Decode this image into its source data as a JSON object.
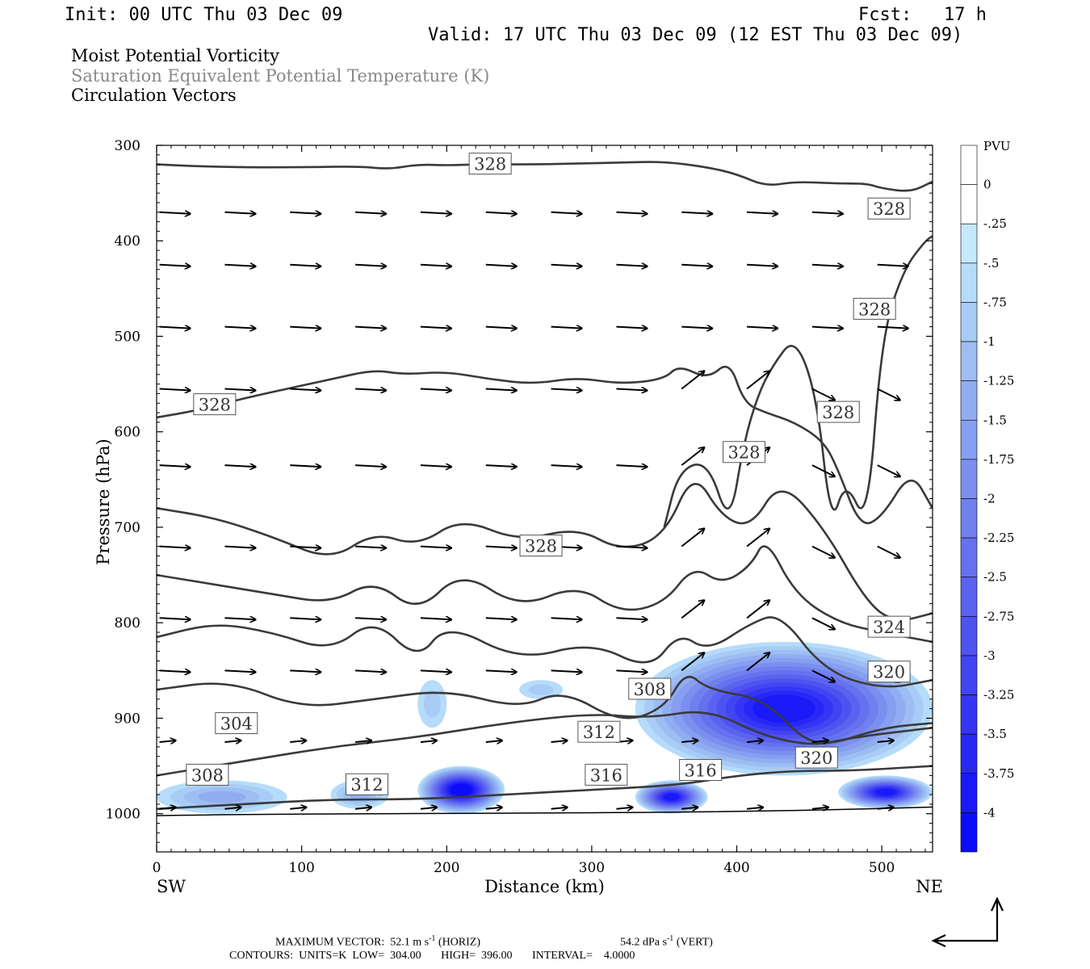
{
  "header": {
    "init": "Init: 00 UTC Thu 03 Dec 09",
    "fcst": "Fcst:   17 h",
    "valid": "Valid: 17 UTC Thu 03 Dec 09 (12 EST Thu 03 Dec 09)"
  },
  "legend": {
    "line1": "Moist Potential Vorticity",
    "line2": "Saturation Equivalent Potential Temperature (K)",
    "line3": "Circulation Vectors"
  },
  "footer": {
    "max_vector": "MAXIMUM VECTOR:  52.1 m s",
    "max_vector_unit_exp": "-1",
    "max_vector_horiz": "(HORIZ)",
    "max_vector_vert_value": "54.2 dPa s",
    "max_vector_vert_exp": "-1",
    "max_vector_vert": "(VERT)",
    "contours": "CONTOURS:  UNITS=K  LOW=  304.00       HIGH=  396.00       INTERVAL=    4.0000"
  },
  "chart_data": {
    "type": "heatmap",
    "xlabel": "Distance (km)",
    "ylabel": "Pressure (hPa)",
    "x_ticks": [
      0,
      100,
      200,
      300,
      400,
      500
    ],
    "y_ticks": [
      300,
      400,
      500,
      600,
      700,
      800,
      900,
      1000
    ],
    "xlim": [
      0,
      535
    ],
    "ylim": [
      1040,
      300
    ],
    "x_end_labels": {
      "left": "SW",
      "right": "NE"
    },
    "colorbar": {
      "label": "PVU",
      "ticks": [
        "0",
        "-.25",
        "-.5",
        "-.75",
        "-1",
        "-1.25",
        "-1.5",
        "-1.75",
        "-2",
        "-2.25",
        "-2.5",
        "-2.75",
        "-3",
        "-3.25",
        "-3.5",
        "-3.75",
        "-4"
      ],
      "colors": [
        "#ffffff",
        "#ffffff",
        "#c6e8fb",
        "#b5dcfa",
        "#a8ccf5",
        "#9dbdf3",
        "#91adf1",
        "#879ff0",
        "#7b90ee",
        "#7080ee",
        "#6571ee",
        "#5a62ef",
        "#4e53f0",
        "#4244f2",
        "#3535f4",
        "#2828f6",
        "#1a1af9",
        "#0c0cfc"
      ]
    },
    "contour_labels": [
      "328",
      "328",
      "328",
      "328",
      "328",
      "328",
      "328",
      "324",
      "320",
      "320",
      "316",
      "316",
      "312",
      "312",
      "308",
      "308",
      "304"
    ],
    "contour_levels_K": {
      "low": 304.0,
      "high": 396.0,
      "interval": 4.0
    },
    "theta_es_contours": [
      {
        "level": 328,
        "x": [
          0,
          30,
          60,
          100,
          140,
          160,
          180,
          200,
          220,
          260,
          290,
          320,
          350,
          380,
          400,
          420,
          440,
          470,
          490,
          500,
          520,
          535
        ],
        "p": [
          320,
          322,
          323,
          323,
          322,
          325,
          320,
          321,
          320,
          320,
          319,
          318,
          317,
          323,
          330,
          343,
          338,
          340,
          340,
          345,
          349,
          338
        ]
      },
      {
        "level": 328,
        "x": [
          0,
          30,
          60,
          90,
          120,
          150,
          170,
          200,
          230,
          260,
          290,
          320,
          350,
          360,
          380,
          395,
          405,
          420,
          440,
          460,
          470,
          485,
          500,
          520,
          535
        ],
        "p": [
          585,
          577,
          565,
          555,
          545,
          535,
          540,
          537,
          545,
          550,
          543,
          550,
          545,
          530,
          545,
          525,
          570,
          580,
          590,
          610,
          640,
          700,
          690,
          640,
          680
        ]
      },
      {
        "level": 328,
        "x": [
          350,
          360,
          380,
          395,
          405,
          415,
          425,
          440,
          455,
          465,
          475,
          490,
          500,
          515,
          530,
          535
        ],
        "p": [
          700,
          640,
          630,
          700,
          610,
          560,
          530,
          500,
          560,
          700,
          650,
          700,
          500,
          430,
          400,
          395
        ]
      },
      {
        "level": 324,
        "x": [
          0,
          40,
          80,
          120,
          150,
          180,
          210,
          250,
          290,
          320,
          350,
          370,
          390,
          410,
          430,
          460,
          490,
          510,
          535
        ],
        "p": [
          680,
          690,
          710,
          735,
          705,
          720,
          690,
          715,
          700,
          725,
          710,
          640,
          690,
          700,
          650,
          700,
          780,
          800,
          790
        ]
      },
      {
        "level": 320,
        "x": [
          0,
          40,
          80,
          120,
          150,
          180,
          210,
          250,
          290,
          320,
          350,
          370,
          390,
          410,
          420,
          440,
          470,
          500,
          535
        ],
        "p": [
          750,
          760,
          770,
          780,
          755,
          790,
          745,
          785,
          760,
          790,
          780,
          740,
          760,
          740,
          710,
          770,
          800,
          810,
          820
        ]
      },
      {
        "level": 316,
        "x": [
          0,
          40,
          80,
          120,
          150,
          180,
          200,
          250,
          300,
          340,
          360,
          380,
          410,
          430,
          460,
          500,
          535
        ],
        "p": [
          815,
          800,
          810,
          830,
          795,
          840,
          800,
          840,
          820,
          850,
          810,
          830,
          800,
          790,
          850,
          870,
          860
        ]
      },
      {
        "level": 312,
        "x": [
          0,
          50,
          100,
          150,
          200,
          250,
          280,
          320,
          350,
          365,
          380,
          420,
          450,
          480,
          535
        ],
        "p": [
          870,
          860,
          890,
          880,
          870,
          890,
          870,
          905,
          890,
          850,
          870,
          880,
          930,
          920,
          910
        ]
      },
      {
        "level": 308,
        "x": [
          0,
          60,
          120,
          180,
          240,
          300,
          340,
          380,
          420,
          460,
          500,
          535
        ],
        "p": [
          960,
          945,
          930,
          920,
          905,
          895,
          900,
          890,
          920,
          930,
          910,
          905
        ]
      },
      {
        "level": 304,
        "x": [
          0,
          60,
          120,
          180,
          240,
          300,
          360,
          400,
          440,
          480,
          535
        ],
        "p": [
          995,
          990,
          985,
          985,
          980,
          975,
          970,
          960,
          955,
          955,
          950
        ]
      }
    ],
    "mpv_negative_regions": [
      {
        "x_range": [
          330,
          535
        ],
        "p_range": [
          820,
          960
        ],
        "min_pvu": -3.5
      },
      {
        "x_range": [
          180,
          240
        ],
        "p_range": [
          950,
          1000
        ],
        "min_pvu": -4.0
      },
      {
        "x_range": [
          330,
          380
        ],
        "p_range": [
          965,
          1000
        ],
        "min_pvu": -3.5
      },
      {
        "x_range": [
          470,
          535
        ],
        "p_range": [
          960,
          995
        ],
        "min_pvu": -3.5
      },
      {
        "x_range": [
          0,
          90
        ],
        "p_range": [
          965,
          1000
        ],
        "min_pvu": -1.0
      },
      {
        "x_range": [
          120,
          160
        ],
        "p_range": [
          965,
          995
        ],
        "min_pvu": -1.0
      },
      {
        "x_range": [
          180,
          200
        ],
        "p_range": [
          860,
          910
        ],
        "min_pvu": -0.5
      },
      {
        "x_range": [
          250,
          280
        ],
        "p_range": [
          860,
          880
        ],
        "min_pvu": -0.5
      }
    ],
    "max_vector": {
      "horiz": "52.1",
      "horiz_unit": "m s-1",
      "vert": "54.2",
      "vert_unit": "dPa s-1"
    }
  }
}
